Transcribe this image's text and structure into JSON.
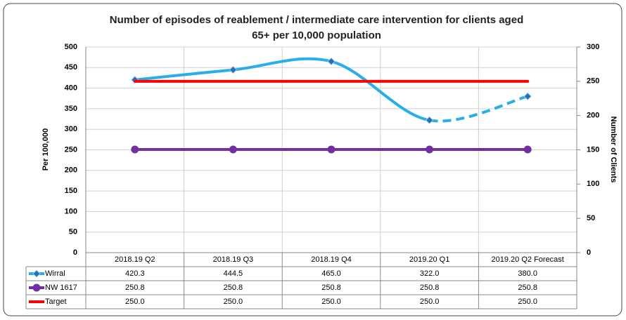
{
  "chart_data": {
    "type": "line",
    "title": "Number of episodes of reablement / intermediate care intervention for clients aged 65+ per 10,000 population",
    "y_label": "Per 100,000",
    "y2_label": "Number of Clients",
    "categories": [
      "2018.19 Q2",
      "2018.19 Q3",
      "2018.19 Q4",
      "2019.20 Q1",
      "2019.20 Q2 Forecast"
    ],
    "series": [
      {
        "name": "Wirral",
        "color": "#29aee6",
        "marker": "diamond",
        "marker_color": "#2a6fb5",
        "dashed_from": 3,
        "values": [
          420.3,
          444.5,
          465,
          322,
          380
        ],
        "value_labels": [
          "420.3",
          "444.5",
          "465.0",
          "322.0",
          "380.0"
        ]
      },
      {
        "name": "NW 1617",
        "color": "#7030a0",
        "marker": "circle",
        "marker_color": "#7030a0",
        "values": [
          250.8,
          250.8,
          250.8,
          250.8,
          250.8
        ],
        "value_labels": [
          "250.8",
          "250.8",
          "250.8",
          "250.8",
          "250.8"
        ]
      },
      {
        "name": "Target",
        "color": "#ff0000",
        "axis": "y2",
        "values": [
          250,
          250,
          250,
          250,
          250
        ],
        "value_labels": [
          "250.0",
          "250.0",
          "250.0",
          "250.0",
          "250.0"
        ]
      }
    ],
    "ylim": [
      0,
      500
    ],
    "yticks": [
      0,
      50,
      100,
      150,
      200,
      250,
      300,
      350,
      400,
      450,
      500
    ],
    "y2lim": [
      0,
      300
    ],
    "y2ticks": [
      0,
      50,
      100,
      150,
      200,
      250,
      300
    ],
    "grid": true,
    "smooth": true
  }
}
